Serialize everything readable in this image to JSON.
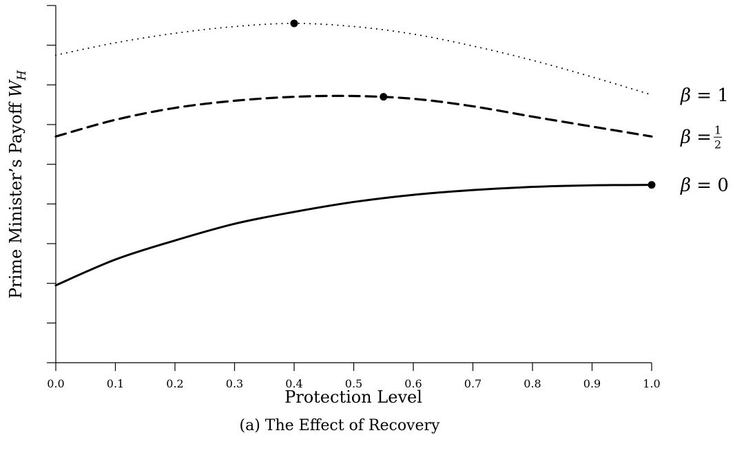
{
  "chart_data": {
    "type": "line",
    "title": "",
    "caption": "(a) The Effect of Recovery",
    "xlabel": "Protection Level",
    "ylabel_text": "Prime Minister’s Payoff ",
    "ylabel_math": "W",
    "ylabel_sub": "H",
    "xlim": [
      0.0,
      1.0
    ],
    "ylim": [
      0,
      9
    ],
    "x_ticks": [
      "0.0",
      "0.1",
      "0.2",
      "0.3",
      "0.4",
      "0.5",
      "0.6",
      "0.7",
      "0.8",
      "0.9",
      "1.0"
    ],
    "y_ticks": [
      0,
      1,
      2,
      3,
      4,
      5,
      6,
      7,
      8,
      9
    ],
    "y_tick_labels_shown": false,
    "grid": false,
    "legend": "labels at right end of each series",
    "series": [
      {
        "name_prefix": "β = ",
        "name_value": "1",
        "style": "dotted",
        "x": [
          0.0,
          0.1,
          0.2,
          0.3,
          0.4,
          0.5,
          0.6,
          0.7,
          0.8,
          0.9,
          1.0
        ],
        "y": [
          7.75,
          8.06,
          8.3,
          8.47,
          8.55,
          8.47,
          8.28,
          7.98,
          7.62,
          7.2,
          6.75
        ],
        "optimum": {
          "x": 0.4,
          "y": 8.55
        }
      },
      {
        "name_prefix": "β = ",
        "name_value": "1/2",
        "style": "dashed",
        "x": [
          0.0,
          0.1,
          0.2,
          0.3,
          0.4,
          0.5,
          0.6,
          0.7,
          0.8,
          0.9,
          1.0
        ],
        "y": [
          5.7,
          6.12,
          6.42,
          6.6,
          6.7,
          6.72,
          6.65,
          6.46,
          6.2,
          5.95,
          5.7
        ],
        "optimum": {
          "x": 0.55,
          "y": 6.7
        }
      },
      {
        "name_prefix": "β = ",
        "name_value": "0",
        "style": "solid",
        "x": [
          0.0,
          0.1,
          0.2,
          0.3,
          0.4,
          0.5,
          0.6,
          0.7,
          0.8,
          0.9,
          1.0
        ],
        "y": [
          1.95,
          2.6,
          3.08,
          3.5,
          3.8,
          4.05,
          4.23,
          4.35,
          4.43,
          4.47,
          4.48
        ],
        "optimum": {
          "x": 1.0,
          "y": 4.48
        }
      }
    ]
  }
}
